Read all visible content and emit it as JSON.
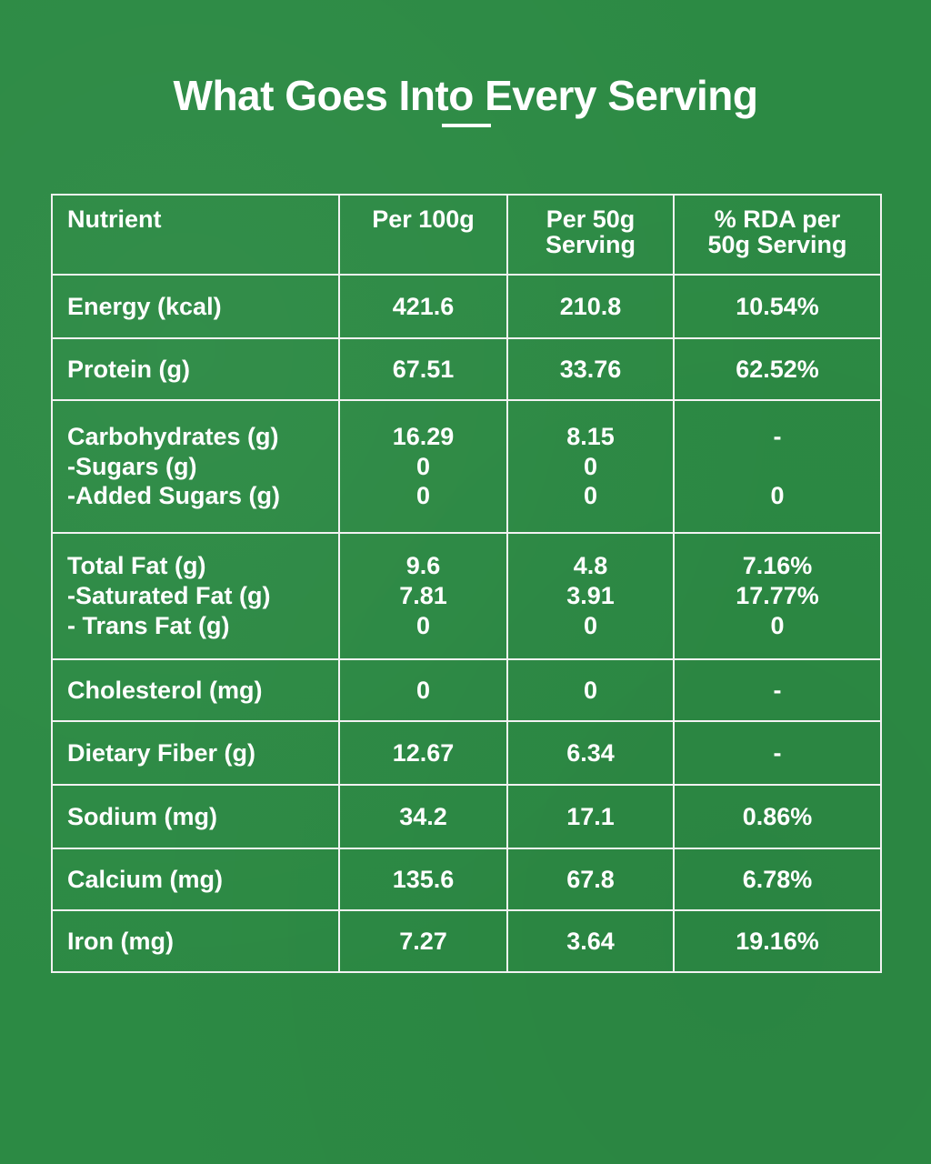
{
  "title": "What Goes Into Every Serving",
  "colors": {
    "background": "#2c8a44",
    "text": "#ffffff",
    "border": "#f2f2f2"
  },
  "table": {
    "headers": [
      "Nutrient",
      "Per 100g",
      "Per 50g Serving",
      "% RDA per 50g Serving"
    ],
    "rows": [
      {
        "nutrient": [
          "Energy (kcal)"
        ],
        "per100": [
          "421.6"
        ],
        "per50": [
          "210.8"
        ],
        "rda": [
          "10.54%"
        ]
      },
      {
        "nutrient": [
          "Protein (g)"
        ],
        "per100": [
          "67.51"
        ],
        "per50": [
          "33.76"
        ],
        "rda": [
          "62.52%"
        ]
      },
      {
        "nutrient": [
          "Carbohydrates (g)",
          "-Sugars (g)",
          "-Added Sugars (g)"
        ],
        "per100": [
          "16.29",
          "0",
          "0"
        ],
        "per50": [
          "8.15",
          "0",
          "0"
        ],
        "rda": [
          "-",
          "",
          "0"
        ]
      },
      {
        "nutrient": [
          "Total Fat (g)",
          "-Saturated Fat (g)",
          "- Trans Fat (g)"
        ],
        "per100": [
          "9.6",
          "7.81",
          "0"
        ],
        "per50": [
          "4.8",
          "3.91",
          "0"
        ],
        "rda": [
          "7.16%",
          "17.77%",
          "0"
        ]
      },
      {
        "nutrient": [
          "Cholesterol (mg)"
        ],
        "per100": [
          "0"
        ],
        "per50": [
          "0"
        ],
        "rda": [
          "-"
        ]
      },
      {
        "nutrient": [
          "Dietary Fiber (g)"
        ],
        "per100": [
          "12.67"
        ],
        "per50": [
          "6.34"
        ],
        "rda": [
          "-"
        ]
      },
      {
        "nutrient": [
          "Sodium (mg)"
        ],
        "per100": [
          "34.2"
        ],
        "per50": [
          "17.1"
        ],
        "rda": [
          "0.86%"
        ]
      },
      {
        "nutrient": [
          "Calcium (mg)"
        ],
        "per100": [
          "135.6"
        ],
        "per50": [
          "67.8"
        ],
        "rda": [
          "6.78%"
        ]
      },
      {
        "nutrient": [
          "Iron (mg)"
        ],
        "per100": [
          "7.27"
        ],
        "per50": [
          "3.64"
        ],
        "rda": [
          "19.16%"
        ]
      }
    ]
  }
}
